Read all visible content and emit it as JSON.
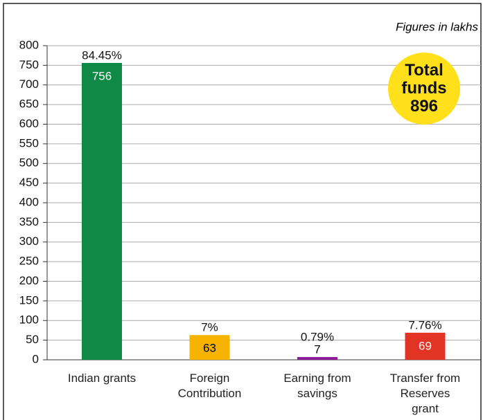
{
  "chart_data": {
    "type": "bar",
    "annotation": "Figures in lakhs",
    "total_label": "Total funds",
    "total": 896,
    "categories": [
      "Indian grants",
      "Foreign\nContribution",
      "Earning from\nsavings",
      "Transfer from\nReserves\ngrant"
    ],
    "values": [
      756,
      63,
      7,
      69
    ],
    "percent_labels": [
      "84.45%",
      "7%",
      "0.79%",
      "7.76%"
    ],
    "colors": [
      "#0f8a46",
      "#f6b400",
      "#8e1b9c",
      "#e13425"
    ],
    "value_label_colors": [
      "#ffffff",
      "#000000",
      "#000000",
      "#ffffff"
    ],
    "ylim": [
      0,
      800
    ],
    "yticks": [
      0,
      50,
      100,
      150,
      200,
      250,
      300,
      350,
      400,
      450,
      500,
      550,
      600,
      650,
      700,
      750,
      800
    ],
    "grid": true
  }
}
